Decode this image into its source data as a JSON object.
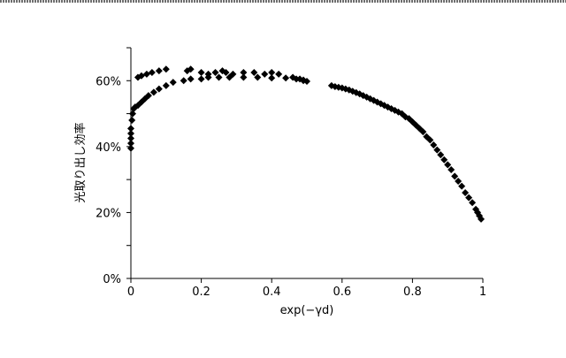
{
  "chart_data": {
    "type": "scatter",
    "title": "",
    "xlabel": "exp(−γd)",
    "ylabel": "光取り出し効率",
    "xlim": [
      0,
      1
    ],
    "ylim": [
      0,
      70
    ],
    "xticks": [
      0,
      0.2,
      0.4,
      0.6,
      0.8,
      1
    ],
    "xtick_labels": [
      "0",
      "0.2",
      "0.4",
      "0.6",
      "0.8",
      "1"
    ],
    "yticks": [
      0,
      20,
      40,
      60
    ],
    "ytick_labels": [
      "0%",
      "20%",
      "40%",
      "60%"
    ],
    "grid": false,
    "legend": "none",
    "marker": "diamond",
    "marker_color": "#000000",
    "series": [
      {
        "points": [
          [
            0.0,
            39.5
          ],
          [
            0.0,
            41.0
          ],
          [
            0.0,
            42.5
          ],
          [
            0.0,
            44.0
          ],
          [
            0.0,
            45.5
          ],
          [
            0.003,
            48.0
          ],
          [
            0.005,
            50.0
          ],
          [
            0.008,
            51.5
          ],
          [
            0.012,
            52.0
          ],
          [
            0.02,
            52.5
          ],
          [
            0.03,
            53.5
          ],
          [
            0.04,
            54.5
          ],
          [
            0.05,
            55.5
          ],
          [
            0.065,
            56.5
          ],
          [
            0.08,
            57.5
          ],
          [
            0.1,
            58.5
          ],
          [
            0.12,
            59.5
          ],
          [
            0.15,
            60.0
          ],
          [
            0.17,
            60.5
          ],
          [
            0.2,
            60.5
          ],
          [
            0.22,
            61.0
          ],
          [
            0.25,
            61.0
          ],
          [
            0.28,
            61.0
          ],
          [
            0.32,
            61.0
          ],
          [
            0.36,
            61.0
          ],
          [
            0.4,
            60.8
          ],
          [
            0.44,
            60.8
          ],
          [
            0.47,
            60.5
          ],
          [
            0.49,
            60.0
          ],
          [
            0.5,
            59.8
          ],
          [
            0.02,
            61.0
          ],
          [
            0.03,
            61.5
          ],
          [
            0.045,
            62.0
          ],
          [
            0.06,
            62.5
          ],
          [
            0.08,
            63.0
          ],
          [
            0.1,
            63.5
          ],
          [
            0.16,
            63.0
          ],
          [
            0.17,
            63.5
          ],
          [
            0.2,
            62.5
          ],
          [
            0.22,
            62.0
          ],
          [
            0.24,
            62.5
          ],
          [
            0.26,
            63.0
          ],
          [
            0.27,
            62.5
          ],
          [
            0.29,
            62.0
          ],
          [
            0.32,
            62.5
          ],
          [
            0.35,
            62.5
          ],
          [
            0.38,
            62.0
          ],
          [
            0.4,
            62.5
          ],
          [
            0.42,
            62.0
          ],
          [
            0.46,
            61.0
          ],
          [
            0.48,
            60.5
          ],
          [
            0.49,
            60.2
          ],
          [
            0.57,
            58.5
          ],
          [
            0.58,
            58.2
          ],
          [
            0.59,
            58.0
          ],
          [
            0.6,
            57.8
          ],
          [
            0.61,
            57.5
          ],
          [
            0.62,
            57.2
          ],
          [
            0.63,
            56.8
          ],
          [
            0.64,
            56.4
          ],
          [
            0.65,
            56.0
          ],
          [
            0.66,
            55.5
          ],
          [
            0.67,
            55.0
          ],
          [
            0.68,
            54.5
          ],
          [
            0.69,
            54.0
          ],
          [
            0.7,
            53.5
          ],
          [
            0.71,
            53.0
          ],
          [
            0.72,
            52.5
          ],
          [
            0.73,
            52.0
          ],
          [
            0.74,
            51.5
          ],
          [
            0.75,
            51.0
          ],
          [
            0.76,
            50.5
          ],
          [
            0.77,
            50.0
          ],
          [
            0.78,
            49.0
          ],
          [
            0.79,
            48.5
          ],
          [
            0.8,
            47.5
          ],
          [
            0.81,
            46.5
          ],
          [
            0.82,
            45.5
          ],
          [
            0.83,
            44.5
          ],
          [
            0.84,
            43.0
          ],
          [
            0.85,
            42.0
          ],
          [
            0.86,
            40.5
          ],
          [
            0.87,
            39.0
          ],
          [
            0.88,
            37.5
          ],
          [
            0.89,
            36.0
          ],
          [
            0.9,
            34.5
          ],
          [
            0.91,
            33.0
          ],
          [
            0.92,
            31.0
          ],
          [
            0.93,
            29.5
          ],
          [
            0.94,
            28.0
          ],
          [
            0.95,
            26.0
          ],
          [
            0.96,
            24.5
          ],
          [
            0.97,
            23.0
          ],
          [
            0.98,
            21.0
          ],
          [
            0.985,
            20.0
          ],
          [
            0.99,
            19.0
          ],
          [
            0.995,
            18.0
          ]
        ]
      }
    ]
  }
}
